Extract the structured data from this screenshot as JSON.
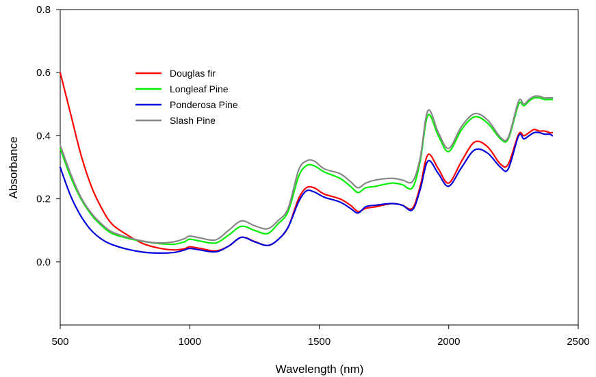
{
  "chart_data": {
    "type": "line",
    "xlabel": "Wavelength (nm)",
    "ylabel": "Absorbance",
    "xlim": [
      500,
      2500
    ],
    "ylim": [
      -0.2,
      0.8
    ],
    "xticks": [
      500,
      1000,
      1500,
      2000,
      2500
    ],
    "xtick_labels": [
      "500",
      "1000",
      "1500",
      "2000",
      "2500"
    ],
    "yticks": [
      0.0,
      0.2,
      0.4,
      0.6,
      0.8
    ],
    "ytick_labels": [
      "0.0",
      "0.2",
      "0.4",
      "0.6",
      "0.8"
    ],
    "grid": false,
    "legend_position": "upper-left",
    "series": [
      {
        "name": "Douglas fir",
        "color": "#ff0000",
        "x": [
          500,
          540,
          580,
          620,
          660,
          700,
          760,
          820,
          880,
          940,
          980,
          1000,
          1040,
          1100,
          1150,
          1200,
          1250,
          1300,
          1340,
          1380,
          1420,
          1450,
          1480,
          1520,
          1580,
          1620,
          1650,
          1680,
          1720,
          1780,
          1820,
          1860,
          1890,
          1920,
          1960,
          2000,
          2050,
          2100,
          2150,
          2200,
          2230,
          2270,
          2290,
          2310,
          2330,
          2350,
          2370,
          2390,
          2400
        ],
        "y": [
          0.6,
          0.47,
          0.34,
          0.24,
          0.17,
          0.12,
          0.085,
          0.058,
          0.044,
          0.038,
          0.042,
          0.048,
          0.043,
          0.035,
          0.05,
          0.078,
          0.065,
          0.052,
          0.07,
          0.11,
          0.2,
          0.235,
          0.235,
          0.215,
          0.2,
          0.18,
          0.16,
          0.17,
          0.175,
          0.185,
          0.18,
          0.17,
          0.24,
          0.34,
          0.295,
          0.25,
          0.32,
          0.38,
          0.365,
          0.31,
          0.31,
          0.405,
          0.4,
          0.41,
          0.42,
          0.415,
          0.415,
          0.41,
          0.41
        ]
      },
      {
        "name": "Longleaf Pine",
        "color": "#00ee00",
        "x": [
          500,
          540,
          580,
          620,
          660,
          700,
          760,
          820,
          880,
          940,
          980,
          1000,
          1040,
          1100,
          1150,
          1200,
          1250,
          1300,
          1340,
          1380,
          1420,
          1450,
          1480,
          1520,
          1580,
          1620,
          1650,
          1680,
          1720,
          1780,
          1820,
          1860,
          1890,
          1920,
          1960,
          2000,
          2050,
          2100,
          2150,
          2200,
          2230,
          2270,
          2290,
          2310,
          2330,
          2350,
          2370,
          2390,
          2400
        ],
        "y": [
          0.36,
          0.27,
          0.2,
          0.15,
          0.115,
          0.09,
          0.075,
          0.065,
          0.058,
          0.056,
          0.064,
          0.072,
          0.066,
          0.06,
          0.085,
          0.113,
          0.1,
          0.09,
          0.12,
          0.16,
          0.27,
          0.305,
          0.305,
          0.285,
          0.265,
          0.24,
          0.22,
          0.235,
          0.24,
          0.25,
          0.245,
          0.235,
          0.32,
          0.465,
          0.4,
          0.35,
          0.42,
          0.46,
          0.44,
          0.39,
          0.39,
          0.5,
          0.495,
          0.51,
          0.52,
          0.52,
          0.515,
          0.515,
          0.515
        ]
      },
      {
        "name": "Ponderosa Pine",
        "color": "#0000dd",
        "x": [
          500,
          540,
          580,
          620,
          660,
          700,
          760,
          820,
          880,
          940,
          980,
          1000,
          1040,
          1100,
          1150,
          1200,
          1250,
          1300,
          1340,
          1380,
          1420,
          1450,
          1480,
          1520,
          1580,
          1620,
          1650,
          1680,
          1720,
          1780,
          1820,
          1860,
          1890,
          1920,
          1960,
          2000,
          2050,
          2100,
          2150,
          2200,
          2230,
          2270,
          2290,
          2310,
          2330,
          2350,
          2370,
          2390,
          2400
        ],
        "y": [
          0.3,
          0.21,
          0.145,
          0.1,
          0.072,
          0.055,
          0.04,
          0.031,
          0.028,
          0.03,
          0.038,
          0.043,
          0.038,
          0.032,
          0.05,
          0.078,
          0.064,
          0.052,
          0.07,
          0.11,
          0.19,
          0.225,
          0.222,
          0.205,
          0.19,
          0.17,
          0.155,
          0.175,
          0.18,
          0.185,
          0.18,
          0.165,
          0.23,
          0.32,
          0.28,
          0.24,
          0.3,
          0.355,
          0.345,
          0.3,
          0.295,
          0.4,
          0.39,
          0.4,
          0.41,
          0.41,
          0.405,
          0.405,
          0.4
        ]
      },
      {
        "name": "Slash Pine",
        "color": "#888888",
        "x": [
          500,
          540,
          580,
          620,
          660,
          700,
          760,
          820,
          880,
          940,
          980,
          1000,
          1040,
          1100,
          1150,
          1200,
          1250,
          1300,
          1340,
          1380,
          1420,
          1450,
          1480,
          1520,
          1580,
          1620,
          1650,
          1680,
          1720,
          1780,
          1820,
          1860,
          1890,
          1920,
          1960,
          2000,
          2050,
          2100,
          2150,
          2200,
          2230,
          2270,
          2290,
          2310,
          2330,
          2350,
          2370,
          2390,
          2400
        ],
        "y": [
          0.37,
          0.28,
          0.205,
          0.155,
          0.12,
          0.095,
          0.078,
          0.066,
          0.06,
          0.064,
          0.074,
          0.082,
          0.076,
          0.07,
          0.1,
          0.13,
          0.115,
          0.105,
          0.13,
          0.17,
          0.29,
          0.32,
          0.32,
          0.295,
          0.28,
          0.255,
          0.235,
          0.25,
          0.26,
          0.265,
          0.26,
          0.255,
          0.33,
          0.48,
          0.41,
          0.36,
          0.43,
          0.47,
          0.45,
          0.395,
          0.395,
          0.51,
          0.5,
          0.515,
          0.525,
          0.525,
          0.52,
          0.52,
          0.52
        ]
      }
    ]
  }
}
